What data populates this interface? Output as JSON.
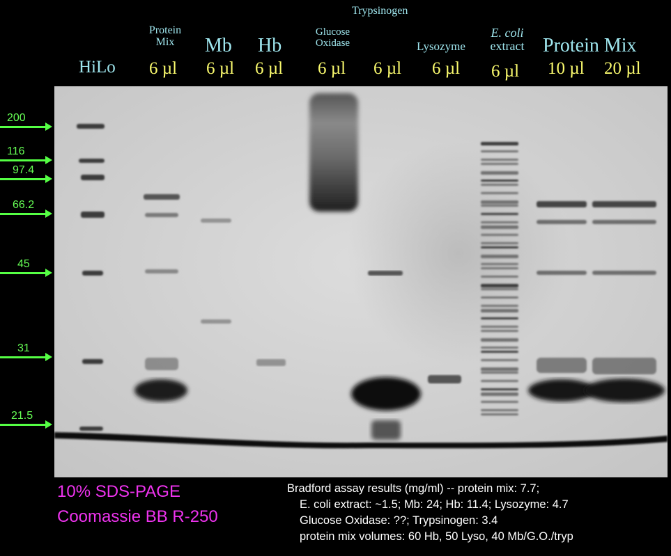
{
  "lanes": [
    {
      "id": "hilo",
      "name": [
        "HiLo"
      ],
      "volume": ""
    },
    {
      "id": "protein-mix-6",
      "name": [
        "Protein",
        "Mix"
      ],
      "volume": "6 µl"
    },
    {
      "id": "mb",
      "name": [
        "Mb"
      ],
      "volume": "6 µl"
    },
    {
      "id": "hb",
      "name": [
        "Hb"
      ],
      "volume": "6 µl"
    },
    {
      "id": "glucose-oxidase",
      "name": [
        "Glucose",
        "Oxidase"
      ],
      "volume": "6 µl"
    },
    {
      "id": "trypsinogen",
      "name": [
        "Trypsinogen"
      ],
      "volume": "6 µl"
    },
    {
      "id": "lysozyme",
      "name": [
        "Lysozyme"
      ],
      "volume": "6 µl"
    },
    {
      "id": "ecoli",
      "name": [
        "E. coli",
        "extract"
      ],
      "volume": "6 µl"
    },
    {
      "id": "protein-mix-10",
      "name": [
        "Protein Mix"
      ],
      "volume": "10 µl"
    },
    {
      "id": "protein-mix-20",
      "name": [],
      "volume": "20 µl"
    }
  ],
  "markers": [
    "200",
    "116",
    "97.4",
    "66.2",
    "45",
    "31",
    "21.5"
  ],
  "gel_info": {
    "line1": "10% SDS-PAGE",
    "line2": "Coomassie BB R-250"
  },
  "bradford": {
    "lines": [
      "Bradford assay results (mg/ml) -- protein mix: 7.7;",
      "E. coli extract: ~1.5; Mb: 24; Hb: 11.4; Lysozyme: 4.7",
      "Glucose Oxidase: ??; Trypsinogen: 3.4",
      "protein mix volumes: 60 Hb,  50 Lyso, 40 Mb/G.O./tryp"
    ]
  },
  "colors": {
    "name_label": "#9fe6ee",
    "volume_label": "#fbfb6e",
    "marker": "#66ff55",
    "caption": "#ee33ee"
  }
}
